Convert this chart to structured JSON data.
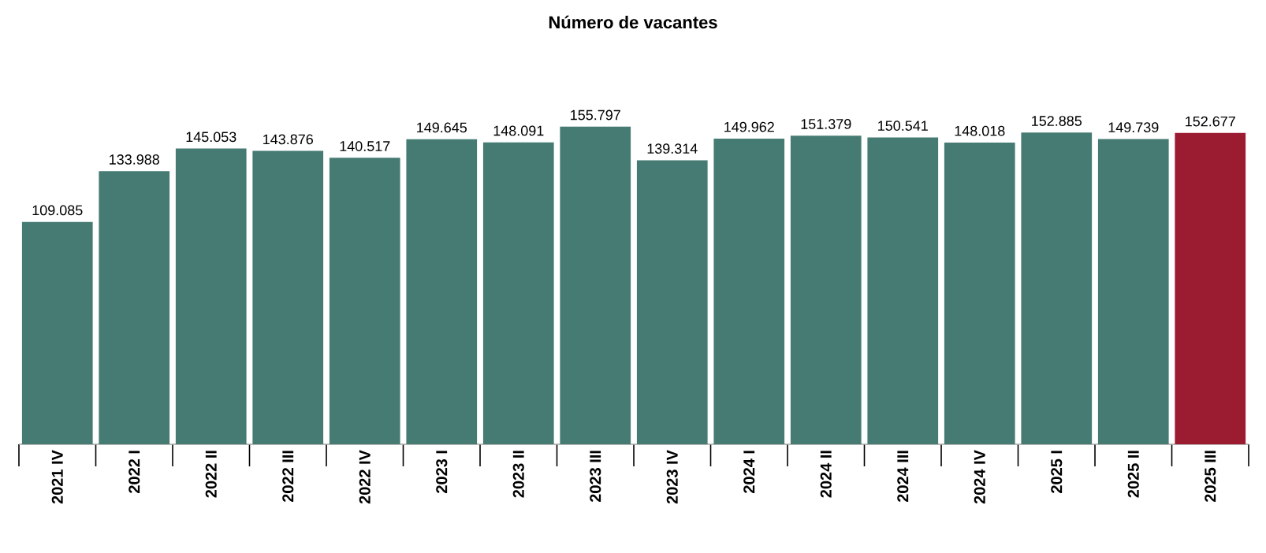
{
  "chart_data": {
    "type": "bar",
    "title": "Número de vacantes",
    "categories": [
      "2021 IV",
      "2022 I",
      "2022 II",
      "2022 III",
      "2022 IV",
      "2023 I",
      "2023 II",
      "2023 III",
      "2023 IV",
      "2024 I",
      "2024 II",
      "2024 III",
      "2024 IV",
      "2025 I",
      "2025 II",
      "2025 III"
    ],
    "values": [
      109085,
      133988,
      145053,
      143876,
      140517,
      149645,
      148091,
      155797,
      139314,
      149962,
      151379,
      150541,
      148018,
      152885,
      149739,
      152677
    ],
    "value_labels": [
      "109.085",
      "133.988",
      "145.053",
      "143.876",
      "140.517",
      "149.645",
      "148.091",
      "155.797",
      "139.314",
      "149.962",
      "151.379",
      "150.541",
      "148.018",
      "152.885",
      "149.739",
      "152.677"
    ],
    "colors": [
      "#457b73",
      "#457b73",
      "#457b73",
      "#457b73",
      "#457b73",
      "#457b73",
      "#457b73",
      "#457b73",
      "#457b73",
      "#457b73",
      "#457b73",
      "#457b73",
      "#457b73",
      "#457b73",
      "#457b73",
      "#9b1b30"
    ],
    "tick_labels": "x"
  }
}
